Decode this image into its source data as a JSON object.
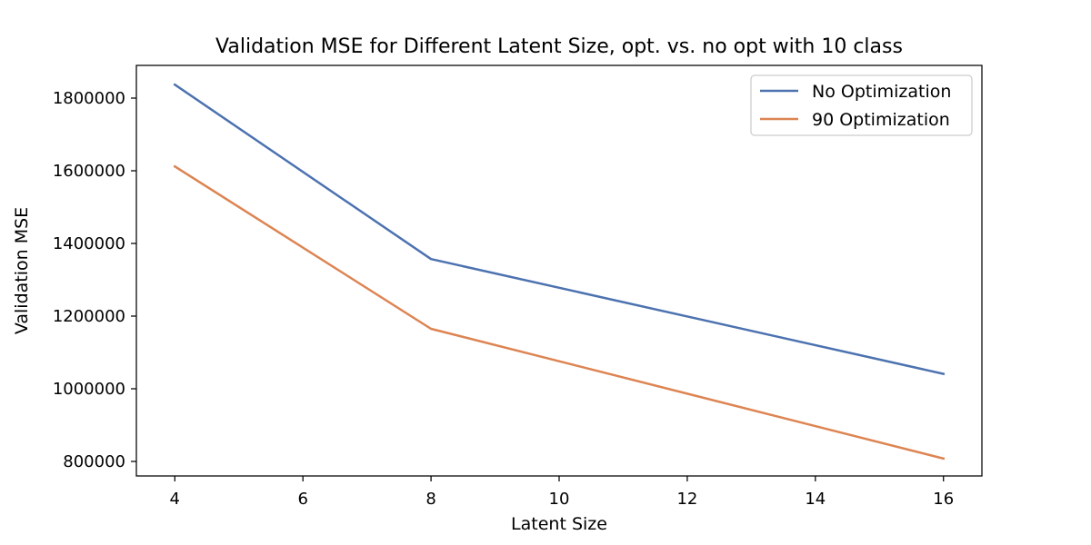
{
  "chart_data": {
    "type": "line",
    "title": "Validation MSE for Different Latent Size, opt. vs. no opt with 10 class",
    "xlabel": "Latent Size",
    "ylabel": "Validation MSE",
    "x": [
      4,
      8,
      16
    ],
    "xlim": [
      3.4,
      16.6
    ],
    "ylim": [
      760000,
      1890000
    ],
    "xticks": [
      4,
      6,
      8,
      10,
      12,
      14,
      16
    ],
    "yticks": [
      800000,
      1000000,
      1200000,
      1400000,
      1600000,
      1800000
    ],
    "xtick_labels": [
      "4",
      "6",
      "8",
      "10",
      "12",
      "14",
      "16"
    ],
    "ytick_labels": [
      "800000",
      "1000000",
      "1200000",
      "1400000",
      "1600000",
      "1800000"
    ],
    "grid": false,
    "legend_position": "top-right",
    "series": [
      {
        "name": "No Optimization",
        "color": "#4c72b0",
        "values": [
          1837000,
          1357000,
          1041000
        ]
      },
      {
        "name": "90 Optimization",
        "color": "#dd8452",
        "values": [
          1612000,
          1165000,
          808000
        ]
      }
    ]
  }
}
